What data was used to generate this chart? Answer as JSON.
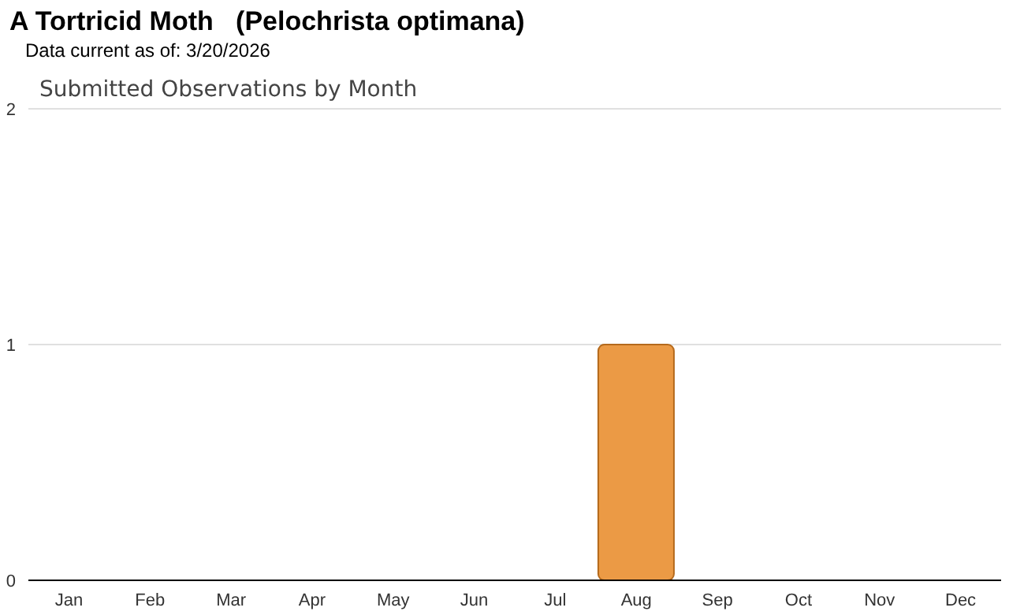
{
  "chart_data": {
    "type": "bar",
    "title": "A Tortricid Moth   (Pelochrista optimana)",
    "subtitle": "Data current as of: 3/20/2026",
    "annotations": [
      "Submitted Observations by Month"
    ],
    "categories": [
      "Jan",
      "Feb",
      "Mar",
      "Apr",
      "May",
      "Jun",
      "Jul",
      "Aug",
      "Sep",
      "Oct",
      "Nov",
      "Dec"
    ],
    "values": [
      0,
      0,
      0,
      0,
      0,
      0,
      0,
      1,
      0,
      0,
      0,
      0
    ],
    "color": "#eb9a45",
    "ylim": [
      0,
      2
    ],
    "yticks": [
      0,
      1,
      2
    ],
    "grid": "y"
  }
}
